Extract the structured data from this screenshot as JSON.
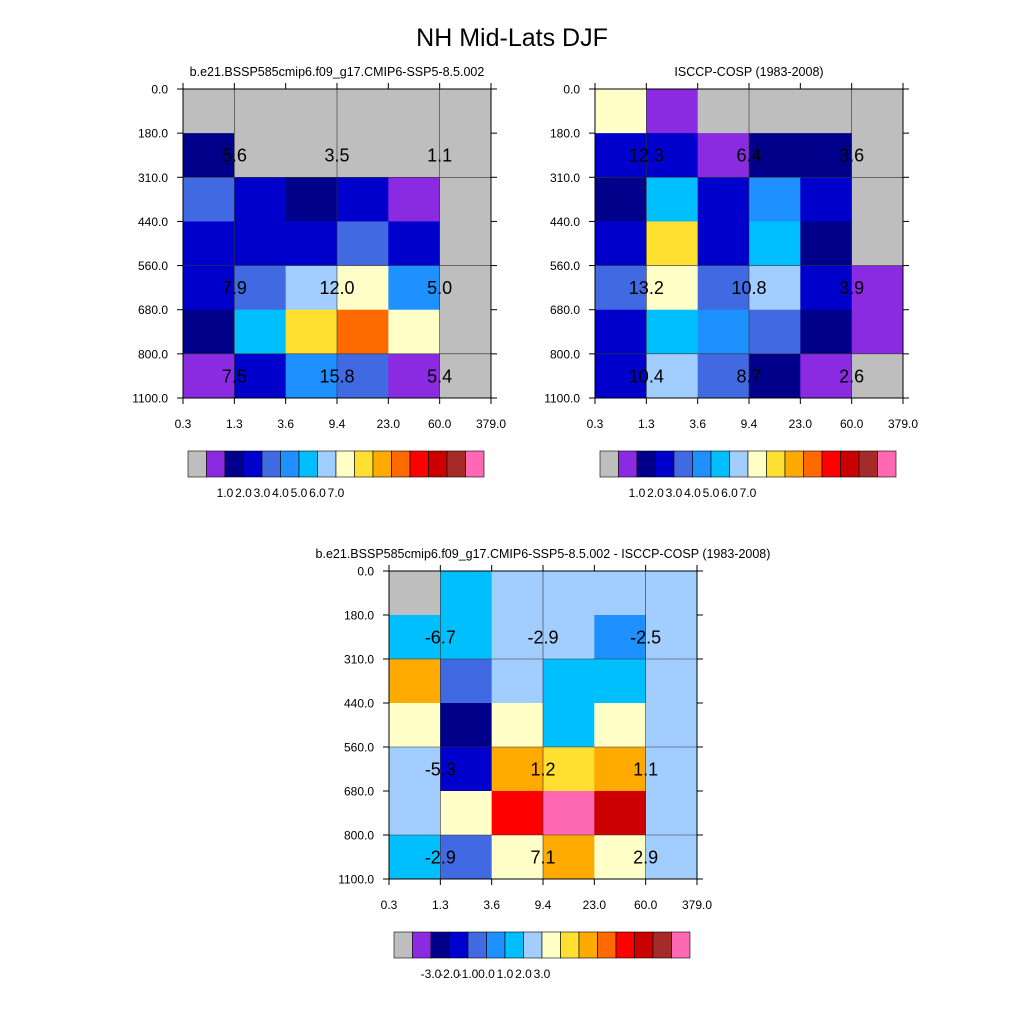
{
  "figure": {
    "title": "NH Mid-Lats DJF"
  },
  "chart_data": [
    {
      "type": "heatmap",
      "title": "b.e21.BSSP585cmip6.f09_g17.CMIP6-SSP5-8.5.002",
      "x_ticks": [
        "0.3",
        "1.3",
        "3.6",
        "9.4",
        "23.0",
        "60.0",
        "379.0"
      ],
      "y_ticks": [
        "0.0",
        "180.0",
        "310.0",
        "440.0",
        "560.0",
        "680.0",
        "800.0",
        "1100.0"
      ],
      "colors": [
        [
          "#BEBEBE",
          "#BEBEBE",
          "#BEBEBE",
          "#BEBEBE",
          "#BEBEBE",
          "#BEBEBE"
        ],
        [
          "#00008B",
          "#BEBEBE",
          "#BEBEBE",
          "#BEBEBE",
          "#BEBEBE",
          "#BEBEBE"
        ],
        [
          "#4169E1",
          "#0000CD",
          "#00008B",
          "#0000CD",
          "#8A2BE2",
          "#BEBEBE"
        ],
        [
          "#0000CD",
          "#0000CD",
          "#0000CD",
          "#4169E1",
          "#0000CD",
          "#BEBEBE"
        ],
        [
          "#0000CD",
          "#4169E1",
          "#A2CDFF",
          "#FFFFC8",
          "#1E90FF",
          "#BEBEBE"
        ],
        [
          "#00008B",
          "#00BFFF",
          "#FFE030",
          "#FF6A00",
          "#FFFFC8",
          "#BEBEBE"
        ],
        [
          "#8A2BE2",
          "#0000CD",
          "#1E90FF",
          "#4169E1",
          "#8A2BE2",
          "#BEBEBE"
        ]
      ],
      "labels": [
        {
          "text": "5.6",
          "x": 1.3,
          "y": 245
        },
        {
          "text": "3.5",
          "x": 9.4,
          "y": 245
        },
        {
          "text": "1.1",
          "x": 60.0,
          "y": 245
        },
        {
          "text": "7.9",
          "x": 1.3,
          "y": 620
        },
        {
          "text": "12.0",
          "x": 9.4,
          "y": 620
        },
        {
          "text": "5.0",
          "x": 60.0,
          "y": 620
        },
        {
          "text": "7.5",
          "x": 1.3,
          "y": 950
        },
        {
          "text": "15.8",
          "x": 9.4,
          "y": 950
        },
        {
          "text": "5.4",
          "x": 60.0,
          "y": 950
        }
      ],
      "colorbar": {
        "colors": [
          "#BEBEBE",
          "#8A2BE2",
          "#00008B",
          "#0000CD",
          "#4169E1",
          "#1E90FF",
          "#00BFFF",
          "#A2CDFF",
          "#FFFFC8",
          "#FFE030",
          "#FFAA00",
          "#FF6A00",
          "#FF0000",
          "#CD0000",
          "#A52A2A",
          "#FF69B4"
        ],
        "labels": [
          "1.0",
          "2.0",
          "3.0",
          "4.0",
          "5.0",
          "6.0",
          "7.0"
        ]
      }
    },
    {
      "type": "heatmap",
      "title": "ISCCP-COSP (1983-2008)",
      "x_ticks": [
        "0.3",
        "1.3",
        "3.6",
        "9.4",
        "23.0",
        "60.0",
        "379.0"
      ],
      "y_ticks": [
        "0.0",
        "180.0",
        "310.0",
        "440.0",
        "560.0",
        "680.0",
        "800.0",
        "1100.0"
      ],
      "colors": [
        [
          "#FFFFC8",
          "#8A2BE2",
          "#BEBEBE",
          "#BEBEBE",
          "#BEBEBE",
          "#BEBEBE"
        ],
        [
          "#0000CD",
          "#0000CD",
          "#8A2BE2",
          "#00008B",
          "#00008B",
          "#BEBEBE"
        ],
        [
          "#00008B",
          "#00BFFF",
          "#0000CD",
          "#1E90FF",
          "#0000CD",
          "#BEBEBE"
        ],
        [
          "#0000CD",
          "#FFE030",
          "#0000CD",
          "#00BFFF",
          "#00008B",
          "#BEBEBE"
        ],
        [
          "#4169E1",
          "#FFFFC8",
          "#4169E1",
          "#A2CDFF",
          "#0000CD",
          "#8A2BE2"
        ],
        [
          "#0000CD",
          "#00BFFF",
          "#1E90FF",
          "#4169E1",
          "#00008B",
          "#8A2BE2"
        ],
        [
          "#0000CD",
          "#A2CDFF",
          "#4169E1",
          "#00008B",
          "#8A2BE2",
          "#BEBEBE"
        ]
      ],
      "labels": [
        {
          "text": "12.3",
          "x": 1.3,
          "y": 245
        },
        {
          "text": "6.4",
          "x": 9.4,
          "y": 245
        },
        {
          "text": "3.6",
          "x": 60.0,
          "y": 245
        },
        {
          "text": "13.2",
          "x": 1.3,
          "y": 620
        },
        {
          "text": "10.8",
          "x": 9.4,
          "y": 620
        },
        {
          "text": "3.9",
          "x": 60.0,
          "y": 620
        },
        {
          "text": "10.4",
          "x": 1.3,
          "y": 950
        },
        {
          "text": "8.7",
          "x": 9.4,
          "y": 950
        },
        {
          "text": "2.6",
          "x": 60.0,
          "y": 950
        }
      ],
      "colorbar": {
        "colors": [
          "#BEBEBE",
          "#8A2BE2",
          "#00008B",
          "#0000CD",
          "#4169E1",
          "#1E90FF",
          "#00BFFF",
          "#A2CDFF",
          "#FFFFC8",
          "#FFE030",
          "#FFAA00",
          "#FF6A00",
          "#FF0000",
          "#CD0000",
          "#A52A2A",
          "#FF69B4"
        ],
        "labels": [
          "1.0",
          "2.0",
          "3.0",
          "4.0",
          "5.0",
          "6.0",
          "7.0"
        ]
      }
    },
    {
      "type": "heatmap",
      "title": "b.e21.BSSP585cmip6.f09_g17.CMIP6-SSP5-8.5.002 - ISCCP-COSP (1983-2008)",
      "x_ticks": [
        "0.3",
        "1.3",
        "3.6",
        "9.4",
        "23.0",
        "60.0",
        "379.0"
      ],
      "y_ticks": [
        "0.0",
        "180.0",
        "310.0",
        "440.0",
        "560.0",
        "680.0",
        "800.0",
        "1100.0"
      ],
      "colors": [
        [
          "#BEBEBE",
          "#00BFFF",
          "#A2CDFF",
          "#A2CDFF",
          "#A2CDFF",
          "#A2CDFF"
        ],
        [
          "#00BFFF",
          "#00BFFF",
          "#A2CDFF",
          "#A2CDFF",
          "#1E90FF",
          "#A2CDFF"
        ],
        [
          "#FFAA00",
          "#4169E1",
          "#A2CDFF",
          "#00BFFF",
          "#00BFFF",
          "#A2CDFF"
        ],
        [
          "#FFFFC8",
          "#00008B",
          "#FFFFC8",
          "#00BFFF",
          "#FFFFC8",
          "#A2CDFF"
        ],
        [
          "#A2CDFF",
          "#0000CD",
          "#FFAA00",
          "#FFE030",
          "#FFAA00",
          "#A2CDFF"
        ],
        [
          "#A2CDFF",
          "#FFFFC8",
          "#FF0000",
          "#FF69B4",
          "#CD0000",
          "#A2CDFF"
        ],
        [
          "#00BFFF",
          "#4169E1",
          "#FFFFC8",
          "#FFAA00",
          "#FFFFC8",
          "#A2CDFF"
        ]
      ],
      "labels": [
        {
          "text": "-6.7",
          "x": 1.3,
          "y": 245
        },
        {
          "text": "-2.9",
          "x": 9.4,
          "y": 245
        },
        {
          "text": "-2.5",
          "x": 60.0,
          "y": 245
        },
        {
          "text": "-5.3",
          "x": 1.3,
          "y": 620
        },
        {
          "text": "1.2",
          "x": 9.4,
          "y": 620
        },
        {
          "text": "1.1",
          "x": 60.0,
          "y": 620
        },
        {
          "text": "-2.9",
          "x": 1.3,
          "y": 950
        },
        {
          "text": "7.1",
          "x": 9.4,
          "y": 950
        },
        {
          "text": "2.9",
          "x": 60.0,
          "y": 950
        }
      ],
      "colorbar": {
        "colors": [
          "#BEBEBE",
          "#8A2BE2",
          "#00008B",
          "#0000CD",
          "#4169E1",
          "#1E90FF",
          "#00BFFF",
          "#A2CDFF",
          "#FFFFC8",
          "#FFE030",
          "#FFAA00",
          "#FF6A00",
          "#FF0000",
          "#CD0000",
          "#A52A2A",
          "#FF69B4"
        ],
        "labels": [
          "-3.0",
          "-2.0",
          "-1.0",
          "0.0",
          "1.0",
          "2.0",
          "3.0"
        ]
      }
    }
  ]
}
